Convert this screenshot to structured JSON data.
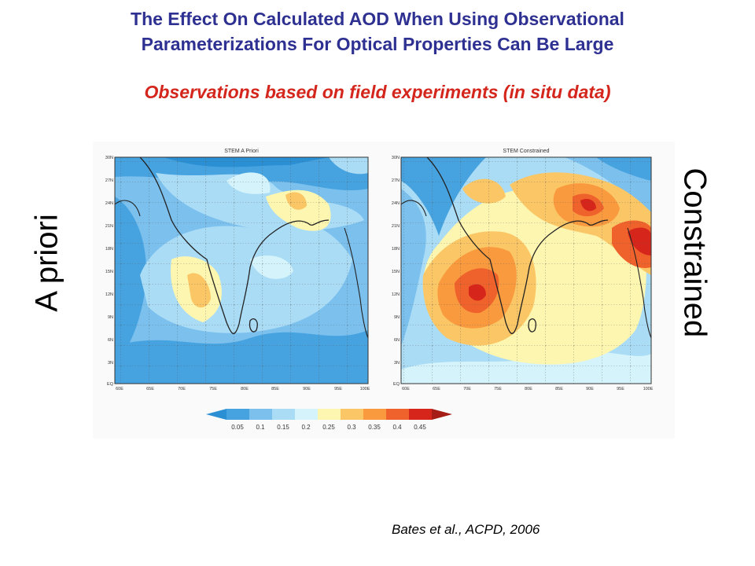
{
  "header": {
    "title_line1": "The Effect On Calculated AOD When Using Observational",
    "title_line2": "Parameterizations For Optical Properties Can Be Large",
    "subtitle": "Observations based on field experiments (in situ data)"
  },
  "labels": {
    "left": "A priori",
    "right": "Constrained"
  },
  "maps": {
    "left_title": "STEM A Priori",
    "right_title": "STEM Constrained",
    "lat_ticks": [
      "30N",
      "27N",
      "24N",
      "21N",
      "18N",
      "15N",
      "12N",
      "9N",
      "6N",
      "3N",
      "EQ"
    ],
    "lon_ticks": [
      "60E",
      "65E",
      "70E",
      "75E",
      "80E",
      "85E",
      "90E",
      "95E",
      "100E"
    ]
  },
  "colorbar": {
    "ticks": [
      "0.05",
      "0.1",
      "0.15",
      "0.2",
      "0.25",
      "0.3",
      "0.35",
      "0.4",
      "0.45"
    ],
    "colors": [
      "#2b8fd4",
      "#47a3e0",
      "#7cc0ee",
      "#aadcf6",
      "#d4f3fb",
      "#fdf6b1",
      "#fbc766",
      "#f99a3e",
      "#f0622b",
      "#d6261b",
      "#a51d16"
    ]
  },
  "citation": "Bates et al., ACPD,  2006"
}
